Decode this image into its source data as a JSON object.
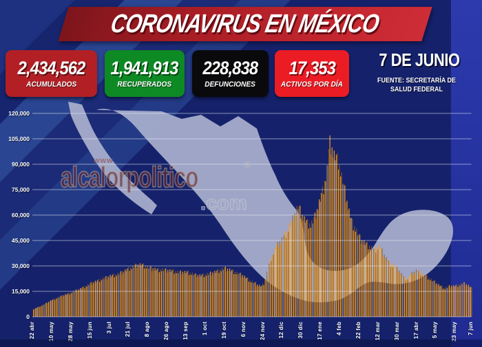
{
  "header": {
    "title": "CORONAVIRUS EN MÉXICO"
  },
  "stats": [
    {
      "value": "2,434,562",
      "label": "ACUMULADOS",
      "color": "#B22025"
    },
    {
      "value": "1,941,913",
      "label": "RECUPERADOS",
      "color": "#0E8A24"
    },
    {
      "value": "228,838",
      "label": "DEFUNCIONES",
      "color": "#0A0A0C"
    },
    {
      "value": "17,353",
      "label": "ACTIVOS POR DÍA",
      "color": "#EC1C24"
    }
  ],
  "date_block": {
    "date": "7 DE JUNIO",
    "source_line1": "FUENTE: SECRETARÍA DE",
    "source_line2": "SALUD FEDERAL"
  },
  "watermark": {
    "www": "www.",
    "name": "alcalorpolitico",
    "reg": "®",
    "com": ".com"
  },
  "chart_data": {
    "type": "bar",
    "title": "CORONAVIRUS EN MÉXICO",
    "series_name": "activos por día",
    "ylim": [
      0,
      120000
    ],
    "grid": true,
    "y_ticks": [
      "0",
      "15,000",
      "30,000",
      "45,000",
      "60,000",
      "75,000",
      "90,000",
      "105,000",
      "120,000"
    ],
    "x_tick_labels": [
      "22 abr",
      "10 may",
      "28 may",
      "15 jun",
      "3 jul",
      "21 jul",
      "8 ago",
      "26 ago",
      "13 sep",
      "1 oct",
      "19 oct",
      "6 nov",
      "24 nov",
      "12 dic",
      "30 dic",
      "17 ene",
      "4 feb",
      "22 feb",
      "12 mar",
      "30 mar",
      "17 abr",
      "5 may",
      "23 may",
      "7 jun"
    ],
    "x_tick_days": [
      0,
      18,
      36,
      54,
      72,
      90,
      108,
      126,
      144,
      162,
      180,
      198,
      216,
      234,
      252,
      270,
      288,
      306,
      324,
      342,
      360,
      378,
      396,
      411
    ],
    "days_total": 411,
    "envelope": [
      [
        0,
        4500
      ],
      [
        4,
        5800
      ],
      [
        8,
        7000
      ],
      [
        12,
        8300
      ],
      [
        16,
        9800
      ],
      [
        20,
        11000
      ],
      [
        25,
        12400
      ],
      [
        29,
        13300
      ],
      [
        33,
        14200
      ],
      [
        38,
        15600
      ],
      [
        42,
        16600
      ],
      [
        46,
        17800
      ],
      [
        50,
        19200
      ],
      [
        55,
        20700
      ],
      [
        60,
        22000
      ],
      [
        64,
        23200
      ],
      [
        68,
        24000
      ],
      [
        72,
        25000
      ],
      [
        77,
        25800
      ],
      [
        81,
        26700
      ],
      [
        85,
        27800
      ],
      [
        89,
        29500
      ],
      [
        94,
        30800
      ],
      [
        99,
        32000
      ],
      [
        103,
        31600
      ],
      [
        107,
        30400
      ],
      [
        111,
        29600
      ],
      [
        116,
        28900
      ],
      [
        121,
        28900
      ],
      [
        126,
        28500
      ],
      [
        131,
        28000
      ],
      [
        136,
        27300
      ],
      [
        140,
        27400
      ],
      [
        144,
        27400
      ],
      [
        148,
        26600
      ],
      [
        152,
        25600
      ],
      [
        156,
        25300
      ],
      [
        160,
        25700
      ],
      [
        164,
        26300
      ],
      [
        169,
        27200
      ],
      [
        174,
        28400
      ],
      [
        179,
        29700
      ],
      [
        183,
        29100
      ],
      [
        187,
        27900
      ],
      [
        191,
        26800
      ],
      [
        196,
        25400
      ],
      [
        200,
        23600
      ],
      [
        204,
        21800
      ],
      [
        208,
        20400
      ],
      [
        211,
        19200
      ],
      [
        214,
        18700
      ],
      [
        216,
        20500
      ],
      [
        218,
        24500
      ],
      [
        220,
        29500
      ],
      [
        222,
        34500
      ],
      [
        225,
        39500
      ],
      [
        228,
        43500
      ],
      [
        231,
        46000
      ],
      [
        234,
        48000
      ],
      [
        237,
        51000
      ],
      [
        240,
        55000
      ],
      [
        243,
        60000
      ],
      [
        246,
        64500
      ],
      [
        248,
        67500
      ],
      [
        250,
        65500
      ],
      [
        252,
        62000
      ],
      [
        254,
        60000
      ],
      [
        257,
        57500
      ],
      [
        260,
        56500
      ],
      [
        262,
        58500
      ],
      [
        264,
        61500
      ],
      [
        266,
        65500
      ],
      [
        268,
        70000
      ],
      [
        270,
        74500
      ],
      [
        272,
        79500
      ],
      [
        274,
        86000
      ],
      [
        276,
        95000
      ],
      [
        278,
        107000
      ],
      [
        280,
        103000
      ],
      [
        282,
        99000
      ],
      [
        284,
        97500
      ],
      [
        286,
        95500
      ],
      [
        288,
        89000
      ],
      [
        290,
        83000
      ],
      [
        292,
        77500
      ],
      [
        294,
        70500
      ],
      [
        296,
        64500
      ],
      [
        298,
        59500
      ],
      [
        300,
        56000
      ],
      [
        302,
        54000
      ],
      [
        304,
        51000
      ],
      [
        306,
        48500
      ],
      [
        308,
        46500
      ],
      [
        310,
        45500
      ],
      [
        313,
        44200
      ],
      [
        316,
        42800
      ],
      [
        319,
        41000
      ],
      [
        322,
        42000
      ],
      [
        324,
        43000
      ],
      [
        326,
        41500
      ],
      [
        328,
        39000
      ],
      [
        330,
        36500
      ],
      [
        332,
        34500
      ],
      [
        334,
        33000
      ],
      [
        336,
        32000
      ],
      [
        339,
        30800
      ],
      [
        342,
        29000
      ],
      [
        344,
        27000
      ],
      [
        346,
        25200
      ],
      [
        348,
        23800
      ],
      [
        350,
        23000
      ],
      [
        352,
        24300
      ],
      [
        354,
        26000
      ],
      [
        356,
        27000
      ],
      [
        359,
        28200
      ],
      [
        361,
        27600
      ],
      [
        363,
        26800
      ],
      [
        365,
        26000
      ],
      [
        368,
        25000
      ],
      [
        371,
        23600
      ],
      [
        374,
        22200
      ],
      [
        377,
        20800
      ],
      [
        380,
        19500
      ],
      [
        383,
        18300
      ],
      [
        386,
        17500
      ],
      [
        389,
        18400
      ],
      [
        391,
        19000
      ],
      [
        394,
        18800
      ],
      [
        397,
        19200
      ],
      [
        400,
        19800
      ],
      [
        403,
        20600
      ],
      [
        405,
        20200
      ],
      [
        407,
        19500
      ],
      [
        409,
        18600
      ],
      [
        411,
        17400
      ]
    ],
    "weekly_pattern": [
      0.97,
      0.93,
      0.99,
      0.94,
      0.98,
      1.0,
      0.91
    ],
    "bar_colors": {
      "bright": "#F89C1B",
      "dark": "#8F5F1F",
      "pale": "#C9CEE4"
    },
    "map_color": "#A7ADCB",
    "gridline_color": "rgba(235,238,245,0.55)"
  }
}
